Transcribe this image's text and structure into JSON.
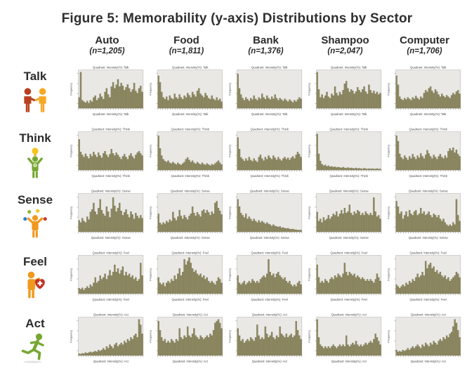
{
  "title": "Figure 5: Memorability (y-axis) Distributions by Sector",
  "columns": [
    {
      "label": "Auto",
      "n": "(n=1,205)"
    },
    {
      "label": "Food",
      "n": "(n=1,811)"
    },
    {
      "label": "Bank",
      "n": "(n=1,376)"
    },
    {
      "label": "Shampoo",
      "n": "(n=2,047)"
    },
    {
      "label": "Computer",
      "n": "(n=1,706)"
    }
  ],
  "rows": [
    {
      "label": "Talk",
      "icon": "talk-handshake-icon"
    },
    {
      "label": "Think",
      "icon": "think-lightbulb-icon"
    },
    {
      "label": "Sense",
      "icon": "sense-juggling-icon"
    },
    {
      "label": "Feel",
      "icon": "feel-heart-icon"
    },
    {
      "label": "Act",
      "icon": "act-running-icon"
    }
  ],
  "colors": {
    "bar_fill": "#8e8960",
    "bar_stroke": "#6c684a",
    "panel_fill": "#e9e8e5",
    "panel_stroke": "#b3b0a9",
    "text_color": "#2b2b2b"
  },
  "chart_data": {
    "type": "bar",
    "subtype": "histogram-grid",
    "grid": "5 rows (quadrants) x 5 columns (sectors), 40 bins each, relative frequency heights 0-1",
    "ylabel": "Frequency",
    "cell_title_template": "Quadrant: Intensity(%): {row}",
    "rows": [
      "Talk",
      "Think",
      "Sense",
      "Feel",
      "Act"
    ],
    "columns": [
      "Auto",
      "Food",
      "Bank",
      "Shampoo",
      "Computer"
    ],
    "cells": {
      "Talk": {
        "Auto": [
          0.3,
          1.0,
          0.22,
          0.18,
          0.15,
          0.2,
          0.14,
          0.22,
          0.18,
          0.3,
          0.35,
          0.22,
          0.28,
          0.4,
          0.32,
          0.25,
          0.45,
          0.55,
          0.38,
          0.3,
          0.6,
          0.72,
          0.55,
          0.65,
          0.8,
          0.6,
          0.7,
          0.62,
          0.5,
          0.58,
          0.66,
          0.55,
          0.45,
          0.52,
          0.7,
          0.48,
          0.42,
          0.55,
          0.62,
          0.45
        ],
        "Food": [
          0.9,
          0.72,
          0.45,
          0.3,
          0.25,
          0.32,
          0.22,
          0.35,
          0.28,
          0.25,
          0.4,
          0.3,
          0.26,
          0.38,
          0.3,
          0.25,
          0.35,
          0.3,
          0.42,
          0.36,
          0.3,
          0.45,
          0.38,
          0.32,
          0.48,
          0.55,
          0.4,
          0.35,
          0.3,
          0.42,
          0.35,
          0.28,
          0.25,
          0.35,
          0.26,
          0.22,
          0.3,
          0.22,
          0.26,
          0.18
        ],
        "Bank": [
          0.95,
          0.55,
          0.38,
          0.28,
          0.22,
          0.3,
          0.25,
          0.2,
          0.28,
          0.24,
          0.35,
          0.26,
          0.22,
          0.3,
          0.26,
          0.4,
          0.3,
          0.25,
          0.35,
          0.28,
          0.24,
          0.32,
          0.26,
          0.38,
          0.28,
          0.22,
          0.28,
          0.24,
          0.2,
          0.26,
          0.22,
          0.18,
          0.24,
          0.2,
          0.16,
          0.22,
          0.18,
          0.24,
          0.3,
          0.26
        ],
        "Shampoo": [
          1.0,
          0.52,
          0.3,
          0.38,
          0.28,
          0.35,
          0.45,
          0.32,
          0.28,
          0.4,
          0.35,
          0.6,
          0.42,
          0.35,
          0.45,
          0.38,
          0.5,
          0.68,
          0.75,
          0.55,
          0.45,
          0.52,
          0.48,
          0.4,
          0.46,
          0.58,
          0.5,
          0.44,
          0.52,
          0.6,
          0.46,
          0.4,
          0.65,
          0.5,
          0.42,
          0.48,
          0.4,
          0.45,
          0.38,
          0.42
        ],
        "Computer": [
          0.9,
          0.65,
          0.32,
          0.25,
          0.22,
          0.28,
          0.24,
          0.3,
          0.26,
          0.22,
          0.3,
          0.26,
          0.34,
          0.28,
          0.24,
          0.32,
          0.28,
          0.42,
          0.5,
          0.45,
          0.55,
          0.6,
          0.48,
          0.42,
          0.52,
          0.46,
          0.38,
          0.32,
          0.4,
          0.34,
          0.3,
          0.36,
          0.32,
          0.28,
          0.36,
          0.42,
          0.38,
          0.46,
          0.5,
          0.4
        ]
      },
      "Think": {
        "Auto": [
          0.85,
          0.5,
          0.42,
          0.36,
          0.45,
          0.38,
          0.32,
          0.44,
          0.38,
          0.5,
          0.42,
          0.36,
          0.48,
          0.4,
          0.34,
          0.46,
          0.52,
          0.42,
          0.36,
          0.44,
          0.58,
          0.46,
          0.4,
          0.48,
          0.42,
          0.36,
          0.3,
          0.38,
          0.44,
          0.36,
          0.3,
          0.4,
          0.46,
          0.38,
          0.32,
          0.42,
          0.48,
          0.52,
          0.46,
          0.4
        ],
        "Food": [
          0.95,
          0.6,
          0.4,
          0.3,
          0.25,
          0.22,
          0.26,
          0.2,
          0.18,
          0.22,
          0.18,
          0.15,
          0.2,
          0.16,
          0.14,
          0.18,
          0.22,
          0.3,
          0.35,
          0.28,
          0.22,
          0.26,
          0.2,
          0.17,
          0.22,
          0.18,
          0.15,
          0.2,
          0.16,
          0.14,
          0.18,
          0.15,
          0.12,
          0.16,
          0.14,
          0.18,
          0.22,
          0.26,
          0.2,
          0.15
        ],
        "Bank": [
          0.9,
          0.58,
          0.35,
          0.3,
          0.25,
          0.32,
          0.26,
          0.36,
          0.28,
          0.24,
          0.32,
          0.26,
          0.22,
          0.36,
          0.42,
          0.32,
          0.26,
          0.36,
          0.3,
          0.4,
          0.34,
          0.3,
          0.4,
          0.34,
          0.28,
          0.36,
          0.3,
          0.26,
          0.32,
          0.36,
          0.3,
          0.34,
          0.28,
          0.34,
          0.38,
          0.32,
          0.42,
          0.5,
          0.44,
          0.36
        ],
        "Shampoo": [
          1.0,
          0.45,
          0.25,
          0.16,
          0.12,
          0.14,
          0.1,
          0.12,
          0.09,
          0.1,
          0.08,
          0.09,
          0.07,
          0.08,
          0.07,
          0.06,
          0.08,
          0.06,
          0.05,
          0.07,
          0.05,
          0.06,
          0.05,
          0.04,
          0.06,
          0.04,
          0.05,
          0.04,
          0.03,
          0.05,
          0.04,
          0.03,
          0.04,
          0.03,
          0.04,
          0.03,
          0.03,
          0.04,
          0.03,
          0.03
        ],
        "Computer": [
          0.95,
          0.8,
          0.45,
          0.35,
          0.3,
          0.4,
          0.34,
          0.28,
          0.38,
          0.32,
          0.44,
          0.36,
          0.3,
          0.4,
          0.34,
          0.46,
          0.38,
          0.32,
          0.42,
          0.55,
          0.46,
          0.38,
          0.32,
          0.42,
          0.36,
          0.3,
          0.38,
          0.44,
          0.36,
          0.32,
          0.4,
          0.34,
          0.52,
          0.6,
          0.54,
          0.62,
          0.48,
          0.56,
          0.44,
          0.38
        ]
      },
      "Sense": {
        "Auto": [
          0.32,
          0.26,
          0.38,
          0.3,
          0.26,
          0.42,
          0.34,
          0.55,
          0.62,
          0.8,
          0.56,
          0.48,
          0.66,
          0.9,
          0.6,
          0.5,
          0.44,
          0.7,
          0.56,
          0.4,
          0.64,
          0.95,
          0.72,
          0.56,
          0.66,
          0.8,
          0.58,
          0.46,
          0.54,
          0.62,
          0.48,
          0.4,
          0.56,
          0.48,
          0.36,
          0.52,
          0.44,
          0.38,
          0.46,
          0.38
        ],
        "Food": [
          0.5,
          0.25,
          0.2,
          0.26,
          0.22,
          0.3,
          0.26,
          0.34,
          0.3,
          0.55,
          0.38,
          0.32,
          0.42,
          0.6,
          0.44,
          0.36,
          0.46,
          0.4,
          0.34,
          0.44,
          0.5,
          0.7,
          0.52,
          0.44,
          0.54,
          0.48,
          0.42,
          0.58,
          0.62,
          0.52,
          0.6,
          0.54,
          0.46,
          0.56,
          0.5,
          0.8,
          0.85,
          0.66,
          0.58,
          0.48
        ],
        "Bank": [
          0.9,
          0.7,
          0.52,
          0.46,
          0.4,
          0.5,
          0.36,
          0.42,
          0.36,
          0.3,
          0.36,
          0.3,
          0.26,
          0.32,
          0.26,
          0.3,
          0.26,
          0.22,
          0.26,
          0.22,
          0.2,
          0.16,
          0.2,
          0.16,
          0.15,
          0.13,
          0.15,
          0.11,
          0.12,
          0.1,
          0.09,
          0.1,
          0.08,
          0.07,
          0.08,
          0.06,
          0.06,
          0.05,
          0.05,
          0.05
        ],
        "Shampoo": [
          0.55,
          0.3,
          0.36,
          0.26,
          0.4,
          0.32,
          0.36,
          0.46,
          0.36,
          0.42,
          0.5,
          0.46,
          0.56,
          0.42,
          0.5,
          0.6,
          0.5,
          0.66,
          0.52,
          0.56,
          0.75,
          0.52,
          0.46,
          0.56,
          0.5,
          0.6,
          0.56,
          0.46,
          0.52,
          0.46,
          0.56,
          0.5,
          0.46,
          0.52,
          0.46,
          0.95,
          0.56,
          0.42,
          0.46,
          0.36
        ],
        "Computer": [
          0.85,
          0.7,
          0.5,
          0.56,
          0.36,
          0.46,
          0.56,
          0.42,
          0.6,
          0.5,
          0.46,
          0.56,
          0.6,
          0.46,
          0.5,
          0.66,
          0.5,
          0.56,
          0.46,
          0.5,
          0.56,
          0.46,
          0.4,
          0.5,
          0.46,
          0.4,
          0.46,
          0.36,
          0.3,
          0.36,
          0.26,
          0.2,
          0.16,
          0.2,
          0.16,
          0.26,
          0.2,
          0.9,
          0.46,
          0.3
        ]
      },
      "Feel": {
        "Auto": [
          0.15,
          0.12,
          0.16,
          0.1,
          0.15,
          0.2,
          0.15,
          0.25,
          0.2,
          0.3,
          0.45,
          0.3,
          0.35,
          0.5,
          0.4,
          0.45,
          0.55,
          0.4,
          0.5,
          0.65,
          0.5,
          0.6,
          0.8,
          0.6,
          0.7,
          0.55,
          0.65,
          0.75,
          0.5,
          0.6,
          0.5,
          0.55,
          0.45,
          0.5,
          0.4,
          0.45,
          0.35,
          0.4,
          0.85,
          0.5
        ],
        "Food": [
          0.45,
          0.3,
          0.25,
          0.3,
          0.2,
          0.3,
          0.35,
          0.3,
          0.4,
          0.35,
          0.5,
          0.4,
          0.55,
          0.7,
          0.5,
          0.6,
          0.95,
          0.8,
          0.9,
          1.0,
          0.85,
          0.7,
          0.6,
          0.65,
          0.55,
          0.5,
          0.55,
          0.45,
          0.5,
          0.4,
          0.45,
          0.35,
          0.3,
          0.35,
          0.3,
          0.25,
          0.35,
          0.45,
          0.4,
          0.3
        ],
        "Bank": [
          0.5,
          0.3,
          0.25,
          0.3,
          0.35,
          0.25,
          0.3,
          0.35,
          0.3,
          0.4,
          0.35,
          0.3,
          0.35,
          0.3,
          0.4,
          0.45,
          0.5,
          0.45,
          0.55,
          0.95,
          0.6,
          0.5,
          0.55,
          0.45,
          0.55,
          0.6,
          0.5,
          0.45,
          0.4,
          0.45,
          0.35,
          0.3,
          0.35,
          0.25,
          0.2,
          0.25,
          0.2,
          0.3,
          0.35,
          0.25
        ],
        "Shampoo": [
          0.8,
          0.45,
          0.3,
          0.35,
          0.3,
          0.4,
          0.35,
          0.3,
          0.4,
          0.45,
          0.4,
          0.5,
          0.45,
          0.55,
          0.5,
          0.45,
          0.55,
          0.85,
          0.6,
          0.5,
          0.6,
          0.55,
          0.5,
          0.55,
          0.45,
          0.5,
          0.45,
          0.4,
          0.45,
          0.4,
          0.35,
          0.4,
          0.35,
          0.4,
          0.35,
          0.3,
          0.4,
          0.55,
          0.45,
          0.35
        ],
        "Computer": [
          0.25,
          0.2,
          0.15,
          0.2,
          0.25,
          0.2,
          0.3,
          0.25,
          0.35,
          0.3,
          0.4,
          0.35,
          0.45,
          0.55,
          0.45,
          0.5,
          0.6,
          0.5,
          0.9,
          0.7,
          0.8,
          0.85,
          0.7,
          0.75,
          0.6,
          0.65,
          0.55,
          0.6,
          0.5,
          0.45,
          0.5,
          0.4,
          0.45,
          0.35,
          0.4,
          0.45,
          0.5,
          0.6,
          0.55,
          0.45
        ]
      },
      "Act": {
        "Auto": [
          0.05,
          0.04,
          0.06,
          0.05,
          0.08,
          0.06,
          0.08,
          0.1,
          0.08,
          0.1,
          0.12,
          0.1,
          0.15,
          0.12,
          0.15,
          0.2,
          0.15,
          0.25,
          0.2,
          0.3,
          0.25,
          0.2,
          0.3,
          0.35,
          0.25,
          0.3,
          0.35,
          0.3,
          0.4,
          0.35,
          0.45,
          0.4,
          0.5,
          0.45,
          0.55,
          0.6,
          0.5,
          1.0,
          0.85,
          0.6
        ],
        "Food": [
          0.95,
          0.7,
          0.5,
          0.4,
          0.45,
          0.35,
          0.4,
          0.35,
          0.45,
          0.4,
          0.35,
          0.45,
          0.4,
          0.75,
          0.5,
          0.45,
          0.55,
          0.5,
          0.8,
          0.55,
          0.5,
          0.6,
          0.75,
          0.55,
          0.5,
          0.45,
          0.55,
          0.5,
          0.45,
          0.5,
          0.55,
          0.5,
          0.6,
          0.55,
          0.7,
          0.9,
          0.95,
          1.0,
          0.9,
          0.75
        ],
        "Bank": [
          0.75,
          0.55,
          0.4,
          0.45,
          0.35,
          0.4,
          0.45,
          0.4,
          0.5,
          0.45,
          0.4,
          0.5,
          0.85,
          0.55,
          0.45,
          0.5,
          0.45,
          0.8,
          0.6,
          0.5,
          0.55,
          0.65,
          0.5,
          0.45,
          0.55,
          0.5,
          0.8,
          0.6,
          0.55,
          0.5,
          0.6,
          0.5,
          0.55,
          0.6,
          0.5,
          0.55,
          0.95,
          0.7,
          0.55,
          0.45
        ],
        "Shampoo": [
          1.0,
          0.5,
          0.3,
          0.25,
          0.2,
          0.25,
          0.2,
          0.25,
          0.2,
          0.25,
          0.3,
          0.25,
          0.2,
          0.25,
          0.3,
          0.25,
          0.3,
          0.25,
          0.55,
          0.3,
          0.25,
          0.3,
          0.35,
          0.3,
          0.4,
          0.3,
          0.25,
          0.3,
          0.25,
          0.3,
          0.35,
          0.3,
          0.35,
          0.4,
          0.35,
          0.45,
          0.6,
          0.5,
          0.4,
          0.3
        ],
        "Computer": [
          0.15,
          0.1,
          0.12,
          0.1,
          0.15,
          0.12,
          0.15,
          0.2,
          0.15,
          0.2,
          0.25,
          0.2,
          0.25,
          0.3,
          0.25,
          0.2,
          0.3,
          0.25,
          0.35,
          0.3,
          0.25,
          0.35,
          0.3,
          0.4,
          0.35,
          0.3,
          0.4,
          0.45,
          0.4,
          0.5,
          0.45,
          0.55,
          0.5,
          0.6,
          0.65,
          0.8,
          1.0,
          0.9,
          0.7,
          0.5
        ]
      }
    }
  }
}
